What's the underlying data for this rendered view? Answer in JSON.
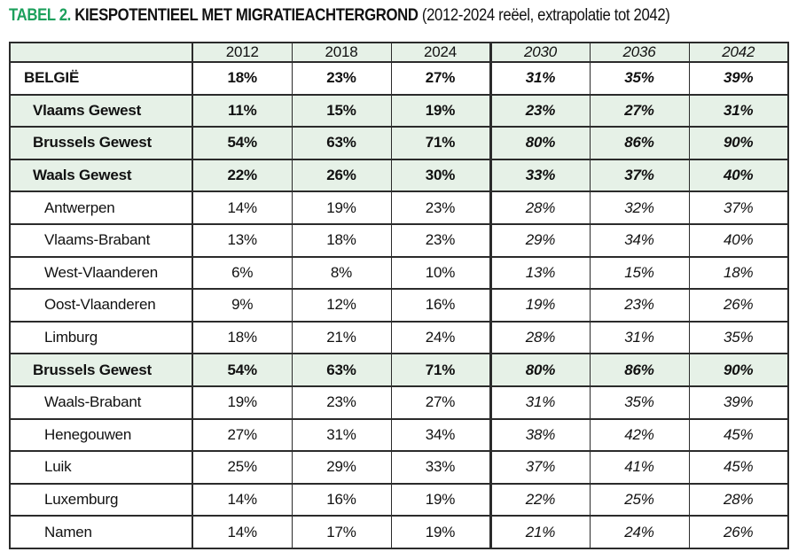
{
  "title": {
    "tag": "TABEL 2.",
    "main": "KIESPOTENTIEEL MET MIGRATIEACHTERGROND",
    "subtitle": "(2012-2024 reëel, extrapolatie tot 2042)"
  },
  "colors": {
    "accent_green": "#1ca05c",
    "row_green": "#e6f1e7",
    "border": "#2b2b2b",
    "text": "#111111"
  },
  "chart_data": {
    "type": "table",
    "columns": [
      "",
      "2012",
      "2018",
      "2024",
      "2030",
      "2036",
      "2042"
    ],
    "real_columns": [
      "2012",
      "2018",
      "2024"
    ],
    "extrapolated_columns": [
      "2030",
      "2036",
      "2042"
    ],
    "rows": [
      {
        "label": "BELGIË",
        "style": "country",
        "values": [
          "18%",
          "23%",
          "27%",
          "31%",
          "35%",
          "39%"
        ]
      },
      {
        "label": "Vlaams Gewest",
        "style": "region",
        "values": [
          "11%",
          "15%",
          "19%",
          "23%",
          "27%",
          "31%"
        ]
      },
      {
        "label": "Brussels Gewest",
        "style": "region",
        "values": [
          "54%",
          "63%",
          "71%",
          "80%",
          "86%",
          "90%"
        ]
      },
      {
        "label": "Waals Gewest",
        "style": "region",
        "values": [
          "22%",
          "26%",
          "30%",
          "33%",
          "37%",
          "40%"
        ]
      },
      {
        "label": "Antwerpen",
        "style": "province",
        "values": [
          "14%",
          "19%",
          "23%",
          "28%",
          "32%",
          "37%"
        ]
      },
      {
        "label": "Vlaams-Brabant",
        "style": "province",
        "values": [
          "13%",
          "18%",
          "23%",
          "29%",
          "34%",
          "40%"
        ]
      },
      {
        "label": "West-Vlaanderen",
        "style": "province",
        "values": [
          "6%",
          "8%",
          "10%",
          "13%",
          "15%",
          "18%"
        ]
      },
      {
        "label": "Oost-Vlaanderen",
        "style": "province",
        "values": [
          "9%",
          "12%",
          "16%",
          "19%",
          "23%",
          "26%"
        ]
      },
      {
        "label": "Limburg",
        "style": "province",
        "values": [
          "18%",
          "21%",
          "24%",
          "28%",
          "31%",
          "35%"
        ]
      },
      {
        "label": "Brussels Gewest",
        "style": "region",
        "values": [
          "54%",
          "63%",
          "71%",
          "80%",
          "86%",
          "90%"
        ]
      },
      {
        "label": "Waals-Brabant",
        "style": "province",
        "values": [
          "19%",
          "23%",
          "27%",
          "31%",
          "35%",
          "39%"
        ]
      },
      {
        "label": "Henegouwen",
        "style": "province",
        "values": [
          "27%",
          "31%",
          "34%",
          "38%",
          "42%",
          "45%"
        ]
      },
      {
        "label": "Luik",
        "style": "province",
        "values": [
          "25%",
          "29%",
          "33%",
          "37%",
          "41%",
          "45%"
        ]
      },
      {
        "label": "Luxemburg",
        "style": "province",
        "values": [
          "14%",
          "16%",
          "19%",
          "22%",
          "25%",
          "28%"
        ]
      },
      {
        "label": "Namen",
        "style": "province",
        "values": [
          "14%",
          "17%",
          "19%",
          "21%",
          "24%",
          "26%"
        ]
      }
    ]
  }
}
